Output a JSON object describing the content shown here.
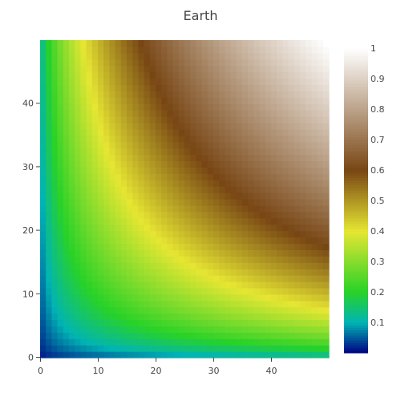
{
  "chart_data": {
    "type": "heatmap",
    "title": "Earth",
    "colorscale_name": "Earth",
    "z_formula_note": "",
    "x_range": [
      0,
      49
    ],
    "y_range": [
      0,
      49
    ],
    "grid_size": 50,
    "x_ticks": [
      "0",
      "10",
      "20",
      "30",
      "40"
    ],
    "y_ticks": [
      "0",
      "10",
      "20",
      "30",
      "40"
    ],
    "colorbar": {
      "range": [
        0,
        1
      ],
      "ticks": [
        "0.1",
        "0.2",
        "0.3",
        "0.4",
        "0.5",
        "0.6",
        "0.7",
        "0.8",
        "0.9",
        "1"
      ]
    },
    "colorscale": [
      [
        0.0,
        "#000082"
      ],
      [
        0.1,
        "#00b4b4"
      ],
      [
        0.2,
        "#28d228"
      ],
      [
        0.4,
        "#e6e632"
      ],
      [
        0.6,
        "#784614"
      ],
      [
        1.0,
        "#ffffff"
      ]
    ]
  }
}
